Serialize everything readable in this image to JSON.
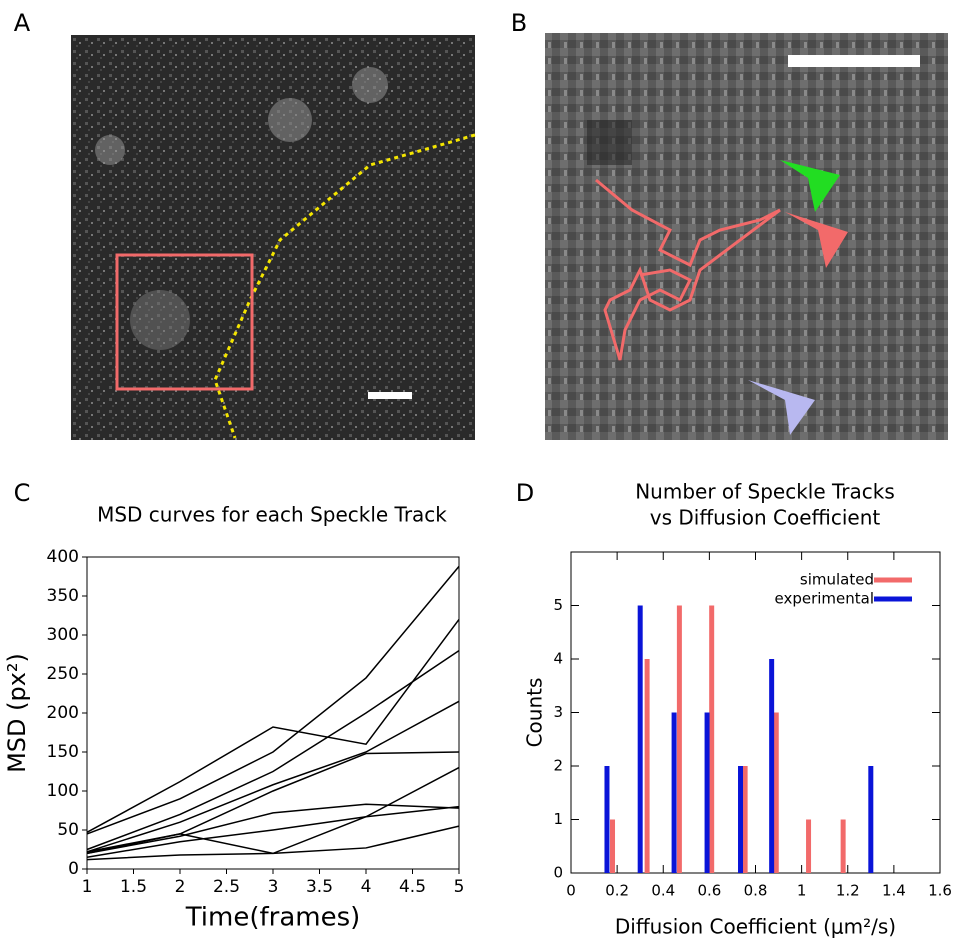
{
  "panel_labels": [
    "A",
    "B",
    "C",
    "D"
  ],
  "chart_data": [
    {
      "type": "line",
      "title": [
        "MSD curves for each Speckle Track"
      ],
      "xlabel": "Time(frames)",
      "ylabel": "MSD (px²)",
      "x": [
        1,
        2,
        3,
        4,
        5
      ],
      "xlim": [
        1,
        5
      ],
      "xticks": [
        1,
        1.5,
        2,
        2.5,
        3,
        3.5,
        4,
        4.5,
        5
      ],
      "ylim": [
        0,
        400
      ],
      "yticks": [
        0,
        50,
        100,
        150,
        200,
        250,
        300,
        350,
        400
      ],
      "series": [
        {
          "color": "#000000",
          "values": [
            47,
            112,
            182,
            160,
            320
          ]
        },
        {
          "color": "#000000",
          "values": [
            45,
            90,
            150,
            245,
            388
          ]
        },
        {
          "color": "#000000",
          "values": [
            25,
            70,
            125,
            200,
            280
          ]
        },
        {
          "color": "#000000",
          "values": [
            22,
            60,
            108,
            150,
            215
          ]
        },
        {
          "color": "#000000",
          "values": [
            20,
            45,
            100,
            148,
            150
          ]
        },
        {
          "color": "#000000",
          "values": [
            22,
            45,
            20,
            67,
            130
          ]
        },
        {
          "color": "#000000",
          "values": [
            20,
            42,
            72,
            83,
            78
          ]
        },
        {
          "color": "#000000",
          "values": [
            15,
            35,
            50,
            67,
            80
          ]
        },
        {
          "color": "#000000",
          "values": [
            12,
            18,
            20,
            27,
            55
          ]
        }
      ]
    },
    {
      "type": "bar",
      "title": [
        "Number of Speckle Tracks",
        "vs Diffusion Coefficient"
      ],
      "xlabel": "Diffusion Coefficient (μm²/s)",
      "ylabel": "Counts",
      "xlim": [
        0,
        1.6
      ],
      "xticks": [
        0,
        0.2,
        0.4,
        0.6,
        0.8,
        1,
        1.2,
        1.4,
        1.6
      ],
      "ylim": [
        0,
        6
      ],
      "yticks": [
        0,
        1,
        2,
        3,
        4,
        5
      ],
      "legend": "upper right",
      "series": [
        {
          "name": "simulated",
          "color": "#f26a6a",
          "x": [
            0.18,
            0.33,
            0.47,
            0.61,
            0.755,
            0.89,
            1.03,
            1.18
          ],
          "values": [
            1,
            4,
            5,
            5,
            2,
            3,
            1,
            1
          ]
        },
        {
          "name": "experimental",
          "color": "#0a14d8",
          "x": [
            0.156,
            0.3,
            0.447,
            0.59,
            0.735,
            0.87,
            1.3
          ],
          "values": [
            2,
            5,
            3,
            3,
            2,
            4,
            2
          ]
        }
      ]
    }
  ]
}
